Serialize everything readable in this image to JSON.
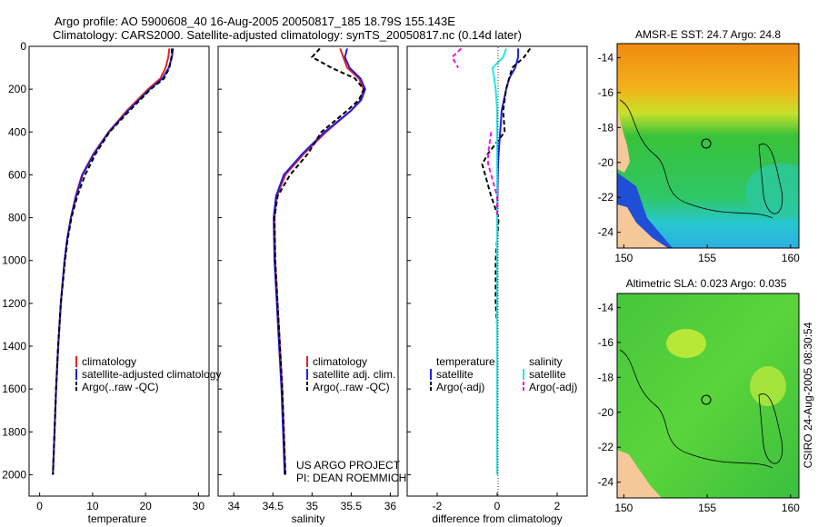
{
  "title": {
    "line1": "Argo profile: AO 5900608_40 16-Aug-2005 20050817_185 18.79S 155.143E",
    "line2": "Climatology: CARS2000. Satellite-adjusted climatology: synTS_20050817.nc (0.14d later)"
  },
  "side_label": "CSIRO 24-Aug-2005 08:30:54",
  "credit": {
    "line1": "US ARGO PROJECT",
    "line2": "PI: DEAN ROEMMICH"
  },
  "colors": {
    "red": "#e8231c",
    "blue": "#1f1fe0",
    "black": "#000000",
    "cyan": "#22e6e6",
    "magenta": "#e619e6",
    "land": "#f5c89a"
  },
  "chart_data": [
    {
      "type": "line",
      "xlabel": "temperature",
      "xlim": [
        -2,
        32
      ],
      "xticks": [
        0,
        10,
        20,
        30
      ],
      "ylim": [
        0,
        2100
      ],
      "yticks": [
        0,
        200,
        400,
        600,
        800,
        1000,
        1200,
        1400,
        1600,
        1800,
        2000
      ],
      "legend": [
        "climatology",
        "satellite-adjusted climatology",
        "Argo(..raw -QC)"
      ],
      "depth": [
        10,
        50,
        100,
        150,
        200,
        300,
        400,
        500,
        600,
        700,
        800,
        900,
        1000,
        1200,
        1400,
        1600,
        1800,
        2000
      ],
      "series": [
        {
          "name": "climatology",
          "color": "red",
          "dash": false,
          "values": [
            24.5,
            24.3,
            23.8,
            22.8,
            20.5,
            16.5,
            13.0,
            10.2,
            8.0,
            6.8,
            5.9,
            5.2,
            4.7,
            4.0,
            3.5,
            3.1,
            2.8,
            2.5
          ]
        },
        {
          "name": "satellite-adjusted climatology",
          "color": "blue",
          "dash": false,
          "values": [
            25.2,
            25.0,
            24.4,
            23.2,
            20.8,
            16.7,
            13.1,
            10.3,
            8.1,
            6.9,
            5.9,
            5.2,
            4.7,
            4.0,
            3.5,
            3.1,
            2.8,
            2.5
          ]
        },
        {
          "name": "Argo(..raw -QC)",
          "color": "black",
          "dash": true,
          "values": [
            25.0,
            24.9,
            24.5,
            23.5,
            21.0,
            17.0,
            13.2,
            10.6,
            8.6,
            7.1,
            6.0,
            5.3,
            4.8,
            4.0,
            3.5,
            3.1,
            2.8,
            2.5
          ]
        }
      ]
    },
    {
      "type": "line",
      "xlabel": "salinity",
      "xlim": [
        33.8,
        36.1
      ],
      "xticks": [
        34,
        34.5,
        35,
        35.5,
        36
      ],
      "ylim": [
        0,
        2100
      ],
      "legend": [
        "climatology",
        "satellite adj. clim.",
        "Argo(..raw -QC)"
      ],
      "depth": [
        10,
        50,
        100,
        150,
        200,
        250,
        300,
        400,
        500,
        600,
        700,
        800,
        1000,
        1200,
        1400,
        1600,
        1800,
        2000
      ],
      "series": [
        {
          "name": "climatology",
          "color": "red",
          "dash": false,
          "values": [
            35.36,
            35.4,
            35.45,
            35.6,
            35.66,
            35.62,
            35.5,
            35.18,
            34.9,
            34.66,
            34.55,
            34.52,
            34.53,
            34.56,
            34.59,
            34.62,
            34.64,
            34.66
          ]
        },
        {
          "name": "satellite adj. clim.",
          "color": "blue",
          "dash": false,
          "values": [
            35.45,
            35.42,
            35.48,
            35.62,
            35.68,
            35.63,
            35.5,
            35.16,
            34.88,
            34.64,
            34.54,
            34.51,
            34.52,
            34.55,
            34.58,
            34.61,
            34.63,
            34.65
          ]
        },
        {
          "name": "Argo(..raw -QC)",
          "color": "black",
          "dash": true,
          "values": [
            35.1,
            35.0,
            35.25,
            35.55,
            35.66,
            35.6,
            35.45,
            35.12,
            34.95,
            34.72,
            34.56,
            34.52,
            34.53,
            34.56,
            34.59,
            34.62,
            34.64,
            34.66
          ]
        }
      ]
    },
    {
      "type": "line",
      "xlabel": "difference from climatology",
      "xlim": [
        -3,
        3
      ],
      "xticks": [
        -2,
        0,
        2
      ],
      "ylim": [
        0,
        2100
      ],
      "legend": [
        "temperature",
        "satellite",
        "Argo(-adj)",
        "salinity",
        "satellite",
        "Argo(-adj)"
      ],
      "depth": [
        10,
        50,
        100,
        150,
        200,
        300,
        400,
        500,
        550,
        600,
        700,
        800,
        1000,
        1200,
        1300,
        1500,
        2000
      ],
      "series": [
        {
          "name": "temperature satellite",
          "color": "blue",
          "dash": false,
          "values": [
            0.7,
            0.7,
            0.6,
            0.4,
            0.3,
            0.15,
            0.1,
            0.05,
            0.03,
            0.02,
            0.01,
            0,
            0,
            0,
            0,
            0,
            0
          ]
        },
        {
          "name": "temperature Argo(-adj)",
          "color": "black",
          "dash": true,
          "values": [
            1.1,
            0.9,
            0.5,
            0.4,
            0.3,
            0.2,
            0.25,
            -0.3,
            -0.5,
            -0.4,
            -0.2,
            0.05,
            -0.05,
            -0.05,
            0,
            0,
            0
          ]
        },
        {
          "name": "salinity satellite",
          "color": "cyan",
          "dash": false,
          "values": [
            0.3,
            0.2,
            -0.15,
            -0.1,
            -0.05,
            0,
            0,
            0,
            0,
            0,
            0,
            0,
            0,
            0,
            0,
            0,
            0
          ]
        },
        {
          "name": "salinity Argo(-adj)",
          "color": "magenta",
          "dash": true,
          "values": [
            -1.2,
            -1.5,
            -1.3,
            null,
            null,
            null,
            -0.2,
            -0.3,
            -0.3,
            -0.2,
            0,
            0,
            null,
            null,
            null,
            null,
            null
          ]
        }
      ]
    },
    {
      "type": "heatmap",
      "title": "AMSR-E SST: 24.7 Argo: 24.8",
      "xticks": [
        150,
        155,
        160
      ],
      "yticks": [
        -14,
        -16,
        -18,
        -20,
        -22,
        -24
      ]
    },
    {
      "type": "heatmap",
      "title": "Altimetric SLA: 0.023 Argo: 0.035",
      "xticks": [
        150,
        155,
        160
      ],
      "yticks": [
        -14,
        -16,
        -18,
        -20,
        -22,
        -24
      ]
    }
  ]
}
